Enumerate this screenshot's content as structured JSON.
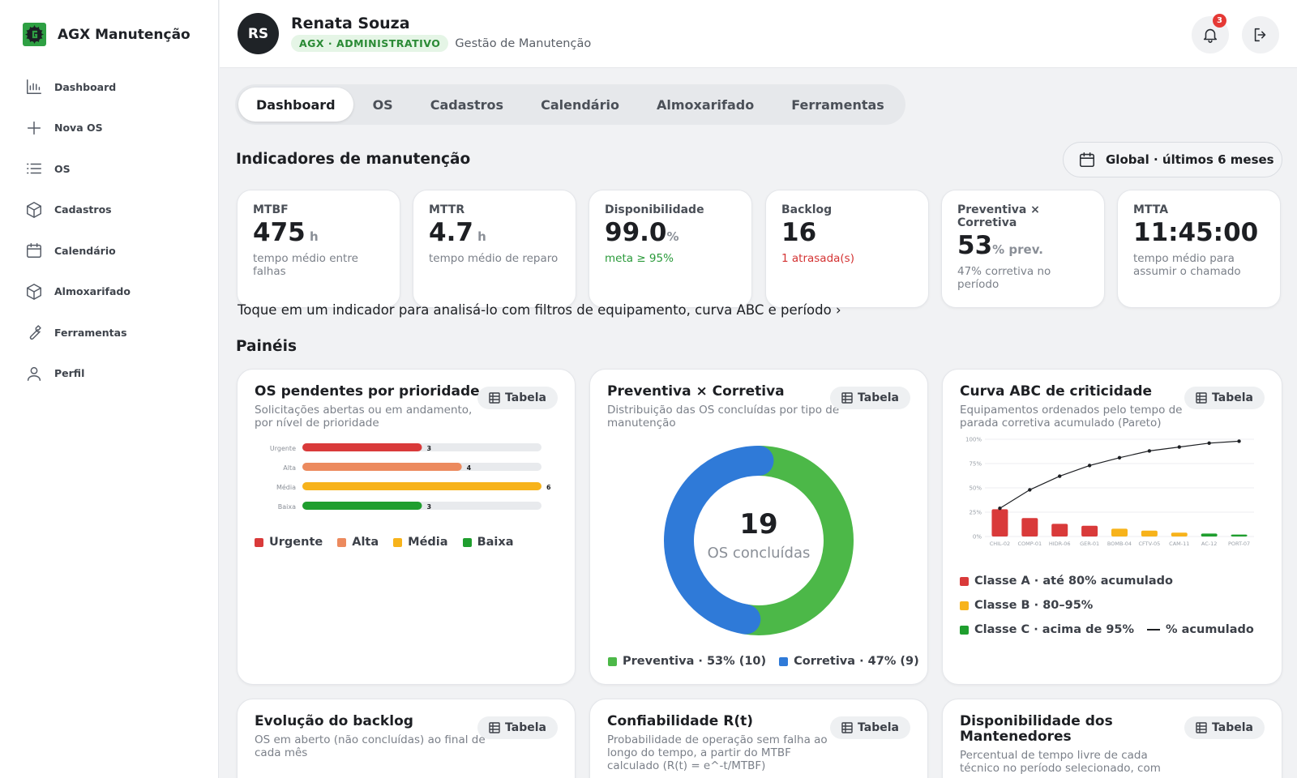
{
  "app": {
    "name": "AGX Manutenção"
  },
  "sidebar": {
    "items": [
      {
        "label": "Dashboard",
        "icon": "bar-chart-icon"
      },
      {
        "label": "Nova OS",
        "icon": "plus-icon"
      },
      {
        "label": "OS",
        "icon": "list-icon"
      },
      {
        "label": "Cadastros",
        "icon": "box-icon"
      },
      {
        "label": "Calendário",
        "icon": "calendar-icon"
      },
      {
        "label": "Almoxarifado",
        "icon": "box-icon"
      },
      {
        "label": "Ferramentas",
        "icon": "wrench-icon"
      },
      {
        "label": "Perfil",
        "icon": "user-icon"
      }
    ]
  },
  "header": {
    "initials": "RS",
    "user_name": "Renata Souza",
    "role_badge": "AGX · ADMINISTRATIVO",
    "role_sub": "Gestão de Manutenção",
    "notification_count": "3"
  },
  "tabs": [
    "Dashboard",
    "OS",
    "Cadastros",
    "Calendário",
    "Almoxarifado",
    "Ferramentas"
  ],
  "indicators": {
    "title": "Indicadores de manutenção",
    "period": "Global · últimos 6 meses",
    "hint": "Toque em um indicador para analisá-lo com filtros de equipamento, curva ABC e período ›",
    "cards": [
      {
        "label": "MTBF",
        "value": "475",
        "unit": " h",
        "desc": "tempo médio entre falhas"
      },
      {
        "label": "MTTR",
        "value": "4.7",
        "unit": " h",
        "desc": "tempo médio de reparo"
      },
      {
        "label": "Disponibilidade",
        "value": "99.0",
        "unit": "%",
        "desc": "meta ≥ 95%"
      },
      {
        "label": "Backlog",
        "value": "16",
        "unit": "",
        "desc": "1 atrasada(s)"
      },
      {
        "label": "Preventiva × Corretiva",
        "value": "53",
        "unit": "% prev.",
        "desc": "47% corretiva no período"
      },
      {
        "label": "MTTA",
        "value": "11:45:00",
        "unit": "",
        "desc": "tempo médio para assumir o chamado"
      }
    ]
  },
  "panels": {
    "title": "Painéis",
    "table_label": "Tabela",
    "priority": {
      "title": "OS pendentes por prioridade",
      "subtitle": "Solicitações abertas ou em andamento, por nível de prioridade",
      "legend": [
        "Urgente",
        "Alta",
        "Média",
        "Baixa"
      ]
    },
    "prev_corr": {
      "title": "Preventiva × Corretiva",
      "subtitle": "Distribuição das OS concluídas por tipo de manutenção",
      "center_value": "19",
      "center_label": "OS concluídas",
      "legend": [
        "Preventiva · 53% (10)",
        "Corretiva · 47% (9)"
      ]
    },
    "abc": {
      "title": "Curva ABC de criticidade",
      "subtitle": "Equipamentos ordenados pelo tempo de parada corretiva acumulado (Pareto)",
      "legend": [
        "Classe A · até 80% acumulado",
        "Classe B · 80–95%",
        "Classe C · acima de 95%",
        "% acumulado"
      ]
    },
    "backlog": {
      "title": "Evolução do backlog",
      "subtitle": "OS em aberto (não concluídas) ao final de cada mês"
    },
    "reliability": {
      "title": "Confiabilidade R(t)",
      "subtitle": "Probabilidade de operação sem falha ao longo do tempo, a partir do MTBF calculado (R(t) = e^-t/MTBF)"
    },
    "availability": {
      "title": "Disponibilidade dos Mantenedores",
      "subtitle": "Percentual de tempo livre de cada técnico no período selecionado, com"
    }
  },
  "colors": {
    "urgent": "#d93a3a",
    "high": "#ec8a5e",
    "medium": "#f7b31b",
    "low": "#1f9e2e",
    "preventive": "#4cb848",
    "corrective": "#2f7ad8",
    "class_a": "#d93a3a",
    "class_b": "#f7b31b",
    "class_c": "#1f9e2e"
  },
  "chart_data": [
    {
      "type": "bar",
      "orientation": "horizontal",
      "categories": [
        "Urgente",
        "Alta",
        "Média",
        "Baixa"
      ],
      "values": [
        3,
        4,
        6,
        3
      ],
      "xlim": [
        0,
        6
      ]
    },
    {
      "type": "pie",
      "donut": true,
      "categories": [
        "Preventiva",
        "Corretiva"
      ],
      "values": [
        10,
        9
      ]
    },
    {
      "type": "bar",
      "categories": [
        "CHIL-02",
        "COMP-01",
        "HIDR-06",
        "GER-01",
        "BOMB-04",
        "CFTV-05",
        "CAM-11",
        "AC-12",
        "PORT-07"
      ],
      "values": [
        28,
        19,
        13,
        11,
        8,
        6,
        4,
        3,
        2
      ],
      "classes": [
        "A",
        "A",
        "A",
        "A",
        "B",
        "B",
        "B",
        "C",
        "C"
      ],
      "cumulative_pct": [
        29,
        48,
        62,
        73,
        81,
        88,
        92,
        96,
        98
      ],
      "yticks": [
        "0%",
        "25%",
        "50%",
        "75%",
        "100%"
      ],
      "ylim": [
        0,
        100
      ]
    }
  ]
}
